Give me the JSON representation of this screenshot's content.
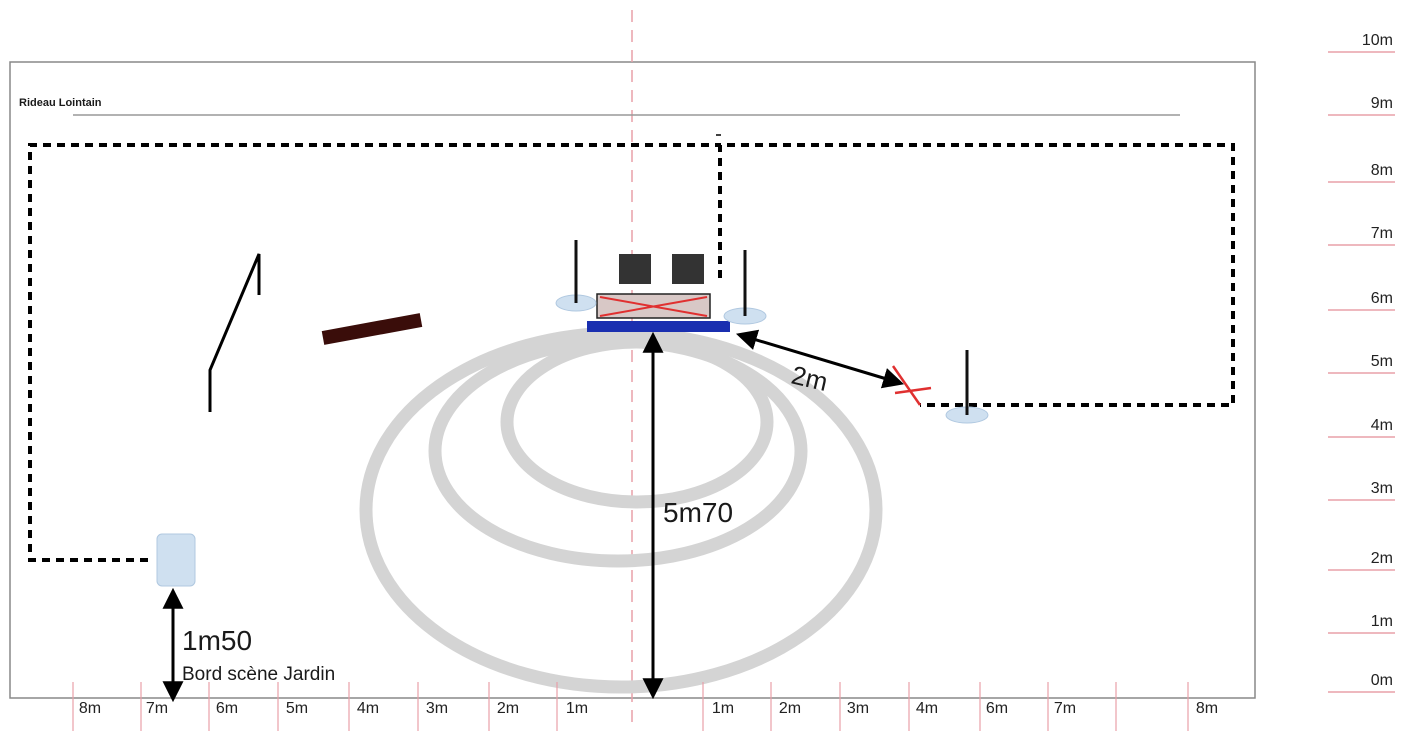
{
  "labels": {
    "back_curtain": "Rideau Lointain",
    "dist_side": "2m",
    "dist_center": "5m70",
    "dist_front": "1m50",
    "stage_edge": "Bord scène Jardin"
  },
  "scale_right": [
    "10m",
    "9m",
    "8m",
    "7m",
    "6m",
    "5m",
    "4m",
    "3m",
    "2m",
    "1m",
    "0m"
  ],
  "scale_bottom_left": [
    "8m",
    "7m",
    "6m",
    "5m",
    "4m",
    "3m",
    "2m",
    "1m"
  ],
  "scale_bottom_right": [
    "1m",
    "2m",
    "3m",
    "4m",
    "6m",
    "7m",
    "8m"
  ],
  "colors": {
    "guide": "#e8a0a8",
    "circles": "#d4d4d4",
    "platform": "#1a2fb0",
    "plank": "#3a0d0a",
    "light_base": "#cfe0f0",
    "cross": "#e03030"
  }
}
